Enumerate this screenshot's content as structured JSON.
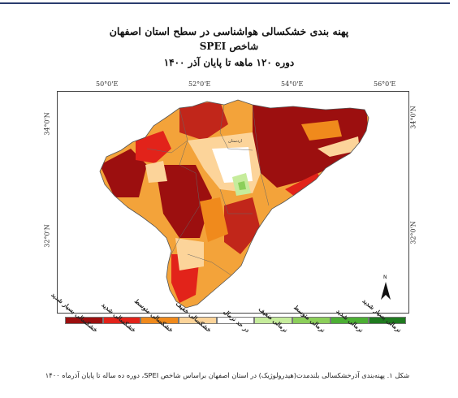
{
  "title": {
    "line1": "پهنه بندی خشکسالی هواشناسی در سطح استان اصفهان",
    "line2": "شاخص SPEI",
    "line3": "دوره ۱۲۰ ماهه تا پایان آذر ۱۴۰۰"
  },
  "axes": {
    "top_ticks": [
      "50°0'E",
      "52°0'E",
      "54°0'E",
      "56°0'E"
    ],
    "left_ticks": [
      "34°0'N",
      "32°0'N"
    ],
    "right_ticks": [
      "34°0'N",
      "32°0'N"
    ]
  },
  "north_arrow": "N",
  "map_text": {
    "city_label": "اردستان"
  },
  "legend": [
    {
      "label": "خشکسالی بسیار شدید",
      "color": "#9c0f0f"
    },
    {
      "label": "خشکسالی شدید",
      "color": "#e2231a"
    },
    {
      "label": "خشکسالی متوسط",
      "color": "#f08a1c"
    },
    {
      "label": "خشکسالی خفیف",
      "color": "#fcd49a"
    },
    {
      "label": "در حد نرمال",
      "color": "#ffffff"
    },
    {
      "label": "نرمالی ضعیف",
      "color": "#c6ec9c"
    },
    {
      "label": "نرمالی متوسط",
      "color": "#8ccf5a"
    },
    {
      "label": "نرمالی شدید",
      "color": "#4caf34"
    },
    {
      "label": "نرمالی بسیار شدید",
      "color": "#1f7a1f"
    }
  ],
  "caption": "شکل ۱. پهنه‌بندی آذرخشکسالی بلندمدت(هیدرولوژیک) در استان اصفهان براساس شاخص SPEI، دوره ده ساله تا پایان آذرماه ۱۴۰۰"
}
